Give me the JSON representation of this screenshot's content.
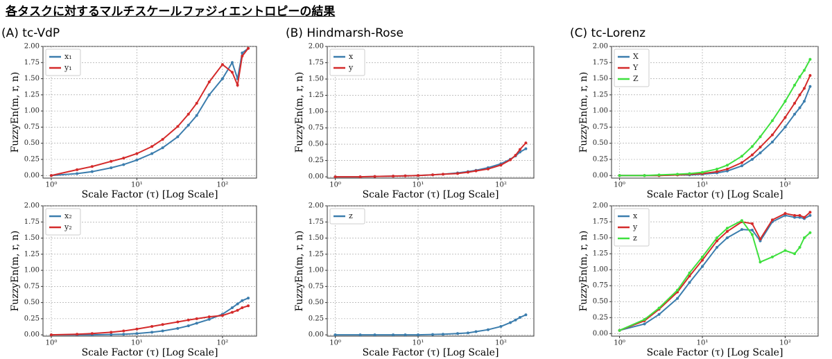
{
  "title": "各タスクに対するマルチスケールファジィエントロピーの結果",
  "chart_data": [
    {
      "type": "line",
      "title": "(A) tc-VdP",
      "xlabel": "Scale Factor (τ) [Log Scale]",
      "ylabel": "FuzzyEn(m, r, n)",
      "log_x": true,
      "grid": true,
      "legend": "upper left",
      "xlim": [
        0.8,
        250
      ],
      "xticks": [
        {
          "value": 1,
          "label": "10⁰"
        },
        {
          "value": 10,
          "label": "10¹"
        },
        {
          "value": 100,
          "label": "10²"
        }
      ],
      "ylim": [
        -0.04,
        2.0
      ],
      "yticks": [
        {
          "value": 0,
          "label": "0.00"
        },
        {
          "value": 0.25,
          "label": "0.25"
        },
        {
          "value": 0.5,
          "label": "0.50"
        },
        {
          "value": 0.75,
          "label": "0.75"
        },
        {
          "value": 1,
          "label": "1.00"
        },
        {
          "value": 1.25,
          "label": "1.25"
        },
        {
          "value": 1.5,
          "label": "1.50"
        },
        {
          "value": 1.75,
          "label": "1.75"
        },
        {
          "value": 2,
          "label": "2.00"
        }
      ],
      "x": [
        1,
        2,
        3,
        5,
        7,
        10,
        15,
        20,
        30,
        40,
        50,
        70,
        100,
        130,
        150,
        170,
        200
      ],
      "series": [
        {
          "name": "x₁",
          "color": "#3b7dad",
          "values": [
            0.0,
            0.03,
            0.06,
            0.12,
            0.17,
            0.24,
            0.34,
            0.43,
            0.6,
            0.78,
            0.93,
            1.25,
            1.5,
            1.75,
            1.5,
            1.9,
            1.97
          ]
        },
        {
          "name": "y₁",
          "color": "#d42a2a",
          "values": [
            0.0,
            0.09,
            0.14,
            0.22,
            0.27,
            0.34,
            0.45,
            0.56,
            0.76,
            0.95,
            1.12,
            1.45,
            1.72,
            1.6,
            1.4,
            1.85,
            1.97
          ]
        }
      ]
    },
    {
      "type": "line",
      "title": "(B) Hindmarsh-Rose",
      "xlabel": "Scale Factor (τ) [Log Scale]",
      "ylabel": "FuzzyEn(m, r, n)",
      "log_x": true,
      "grid": true,
      "legend": "upper left",
      "xlim": [
        0.8,
        250
      ],
      "xticks": [
        {
          "value": 1,
          "label": "10⁰"
        },
        {
          "value": 10,
          "label": "10¹"
        },
        {
          "value": 100,
          "label": "10²"
        }
      ],
      "ylim": [
        -0.02,
        2.0
      ],
      "yticks": [
        {
          "value": 0,
          "label": "0.00"
        },
        {
          "value": 0.25,
          "label": "0.25"
        },
        {
          "value": 0.5,
          "label": "0.50"
        },
        {
          "value": 0.75,
          "label": "0.75"
        },
        {
          "value": 1,
          "label": "1.00"
        },
        {
          "value": 1.25,
          "label": "1.25"
        },
        {
          "value": 1.5,
          "label": "1.50"
        },
        {
          "value": 1.75,
          "label": "1.75"
        },
        {
          "value": 2,
          "label": "2.00"
        }
      ],
      "x": [
        1,
        2,
        3,
        5,
        7,
        10,
        15,
        20,
        30,
        40,
        50,
        70,
        100,
        130,
        150,
        170,
        200
      ],
      "series": [
        {
          "name": "x",
          "color": "#3b7dad",
          "values": [
            0,
            0,
            0.005,
            0.01,
            0.015,
            0.02,
            0.03,
            0.04,
            0.06,
            0.08,
            0.1,
            0.14,
            0.2,
            0.27,
            0.32,
            0.38,
            0.43
          ]
        },
        {
          "name": "y",
          "color": "#d42a2a",
          "values": [
            0,
            0,
            0.005,
            0.01,
            0.015,
            0.02,
            0.03,
            0.04,
            0.05,
            0.07,
            0.09,
            0.12,
            0.18,
            0.26,
            0.33,
            0.42,
            0.52
          ]
        }
      ]
    },
    {
      "type": "line",
      "title": "(C) tc-Lorenz",
      "xlabel": "Scale Factor (τ) [Log Scale]",
      "ylabel": "FuzzyEn(m, r, n)",
      "log_x": true,
      "grid": true,
      "legend": "upper left",
      "xlim": [
        0.8,
        250
      ],
      "xticks": [
        {
          "value": 1,
          "label": "10⁰"
        },
        {
          "value": 10,
          "label": "10¹"
        },
        {
          "value": 100,
          "label": "10²"
        }
      ],
      "ylim": [
        -0.04,
        2.0
      ],
      "yticks": [
        {
          "value": 0,
          "label": "0.00"
        },
        {
          "value": 0.25,
          "label": "0.25"
        },
        {
          "value": 0.5,
          "label": "0.50"
        },
        {
          "value": 0.75,
          "label": "0.75"
        },
        {
          "value": 1,
          "label": "1.00"
        },
        {
          "value": 1.25,
          "label": "1.25"
        },
        {
          "value": 1.5,
          "label": "1.50"
        },
        {
          "value": 1.75,
          "label": "1.75"
        },
        {
          "value": 2,
          "label": "2.00"
        }
      ],
      "x": [
        1,
        2,
        3,
        5,
        7,
        10,
        15,
        20,
        30,
        40,
        50,
        70,
        100,
        130,
        150,
        170,
        200
      ],
      "series": [
        {
          "name": "X",
          "color": "#3b7dad",
          "values": [
            0,
            0,
            0,
            0.01,
            0.01,
            0.02,
            0.04,
            0.07,
            0.15,
            0.25,
            0.35,
            0.52,
            0.75,
            0.95,
            1.05,
            1.15,
            1.38
          ]
        },
        {
          "name": "Y",
          "color": "#d42a2a",
          "values": [
            0,
            0,
            0,
            0.01,
            0.02,
            0.03,
            0.06,
            0.1,
            0.2,
            0.32,
            0.44,
            0.63,
            0.9,
            1.12,
            1.25,
            1.35,
            1.55
          ]
        },
        {
          "name": "Z",
          "color": "#3ee03e",
          "values": [
            0,
            0,
            0.01,
            0.02,
            0.03,
            0.05,
            0.1,
            0.16,
            0.3,
            0.45,
            0.6,
            0.85,
            1.15,
            1.4,
            1.53,
            1.63,
            1.8
          ]
        }
      ]
    },
    {
      "type": "line",
      "xlabel": "Scale Factor (τ) [Log Scale]",
      "ylabel": "FuzzyEn(m, r, n)",
      "log_x": true,
      "grid": true,
      "legend": "upper left",
      "xlim": [
        0.8,
        250
      ],
      "xticks": [
        {
          "value": 1,
          "label": "10⁰"
        },
        {
          "value": 10,
          "label": "10¹"
        },
        {
          "value": 100,
          "label": "10²"
        }
      ],
      "ylim": [
        -0.02,
        2.0
      ],
      "yticks": [
        {
          "value": 0,
          "label": "0.00"
        },
        {
          "value": 0.25,
          "label": "0.25"
        },
        {
          "value": 0.5,
          "label": "0.50"
        },
        {
          "value": 0.75,
          "label": "0.75"
        },
        {
          "value": 1,
          "label": "1.00"
        },
        {
          "value": 1.25,
          "label": "1.25"
        },
        {
          "value": 1.5,
          "label": "1.50"
        },
        {
          "value": 1.75,
          "label": "1.75"
        },
        {
          "value": 2,
          "label": "2.00"
        }
      ],
      "x": [
        1,
        2,
        3,
        5,
        7,
        10,
        15,
        20,
        30,
        40,
        50,
        70,
        100,
        130,
        150,
        170,
        200
      ],
      "series": [
        {
          "name": "x₂",
          "color": "#3b7dad",
          "values": [
            0,
            0,
            0,
            0.005,
            0.01,
            0.02,
            0.04,
            0.06,
            0.1,
            0.14,
            0.18,
            0.24,
            0.32,
            0.42,
            0.48,
            0.53,
            0.57
          ]
        },
        {
          "name": "y₂",
          "color": "#d42a2a",
          "values": [
            0,
            0.01,
            0.02,
            0.04,
            0.06,
            0.09,
            0.13,
            0.16,
            0.2,
            0.23,
            0.25,
            0.28,
            0.3,
            0.35,
            0.38,
            0.42,
            0.45
          ]
        }
      ]
    },
    {
      "type": "line",
      "xlabel": "Scale Factor (τ) [Log Scale]",
      "ylabel": "FuzzyEn(m, r, n)",
      "log_x": true,
      "grid": true,
      "legend": "upper left",
      "xlim": [
        0.8,
        250
      ],
      "xticks": [
        {
          "value": 1,
          "label": "10⁰"
        },
        {
          "value": 10,
          "label": "10¹"
        },
        {
          "value": 100,
          "label": "10²"
        }
      ],
      "ylim": [
        -0.02,
        2.0
      ],
      "yticks": [
        {
          "value": 0,
          "label": "0.00"
        },
        {
          "value": 0.25,
          "label": "0.25"
        },
        {
          "value": 0.5,
          "label": "0.50"
        },
        {
          "value": 0.75,
          "label": "0.75"
        },
        {
          "value": 1,
          "label": "1.00"
        },
        {
          "value": 1.25,
          "label": "1.25"
        },
        {
          "value": 1.5,
          "label": "1.50"
        },
        {
          "value": 1.75,
          "label": "1.75"
        },
        {
          "value": 2,
          "label": "2.00"
        }
      ],
      "x": [
        1,
        2,
        3,
        5,
        7,
        10,
        15,
        20,
        30,
        40,
        50,
        70,
        100,
        130,
        150,
        170,
        200
      ],
      "series": [
        {
          "name": "z",
          "color": "#3b7dad",
          "values": [
            0,
            0,
            0,
            0,
            0,
            0,
            0.005,
            0.01,
            0.02,
            0.03,
            0.05,
            0.08,
            0.13,
            0.19,
            0.23,
            0.27,
            0.31
          ]
        }
      ]
    },
    {
      "type": "line",
      "xlabel": "Scale Factor (τ) [Log Scale]",
      "ylabel": "FuzzyEn(m, r, n)",
      "log_x": true,
      "grid": true,
      "legend": "upper left",
      "xlim": [
        0.8,
        250
      ],
      "xticks": [
        {
          "value": 1,
          "label": "10⁰"
        },
        {
          "value": 10,
          "label": "10¹"
        },
        {
          "value": 100,
          "label": "10²"
        }
      ],
      "ylim": [
        -0.04,
        2.0
      ],
      "yticks": [
        {
          "value": 0,
          "label": "0.00"
        },
        {
          "value": 0.25,
          "label": "0.25"
        },
        {
          "value": 0.5,
          "label": "0.50"
        },
        {
          "value": 0.75,
          "label": "0.75"
        },
        {
          "value": 1,
          "label": "1.00"
        },
        {
          "value": 1.25,
          "label": "1.25"
        },
        {
          "value": 1.5,
          "label": "1.50"
        },
        {
          "value": 1.75,
          "label": "1.75"
        },
        {
          "value": 2,
          "label": "2.00"
        }
      ],
      "x": [
        1,
        2,
        3,
        5,
        7,
        10,
        15,
        20,
        30,
        40,
        50,
        70,
        100,
        130,
        150,
        170,
        200
      ],
      "series": [
        {
          "name": "x",
          "color": "#3b7dad",
          "values": [
            0.05,
            0.15,
            0.3,
            0.55,
            0.8,
            1.05,
            1.35,
            1.5,
            1.63,
            1.62,
            1.45,
            1.75,
            1.85,
            1.82,
            1.82,
            1.8,
            1.85
          ]
        },
        {
          "name": "y",
          "color": "#d42a2a",
          "values": [
            0.05,
            0.2,
            0.38,
            0.65,
            0.9,
            1.15,
            1.45,
            1.6,
            1.75,
            1.72,
            1.48,
            1.78,
            1.88,
            1.85,
            1.85,
            1.82,
            1.9
          ]
        },
        {
          "name": "z",
          "color": "#3ee03e",
          "values": [
            0.05,
            0.22,
            0.4,
            0.68,
            0.95,
            1.2,
            1.5,
            1.65,
            1.77,
            1.55,
            1.12,
            1.2,
            1.3,
            1.25,
            1.35,
            1.5,
            1.58
          ]
        }
      ]
    }
  ]
}
